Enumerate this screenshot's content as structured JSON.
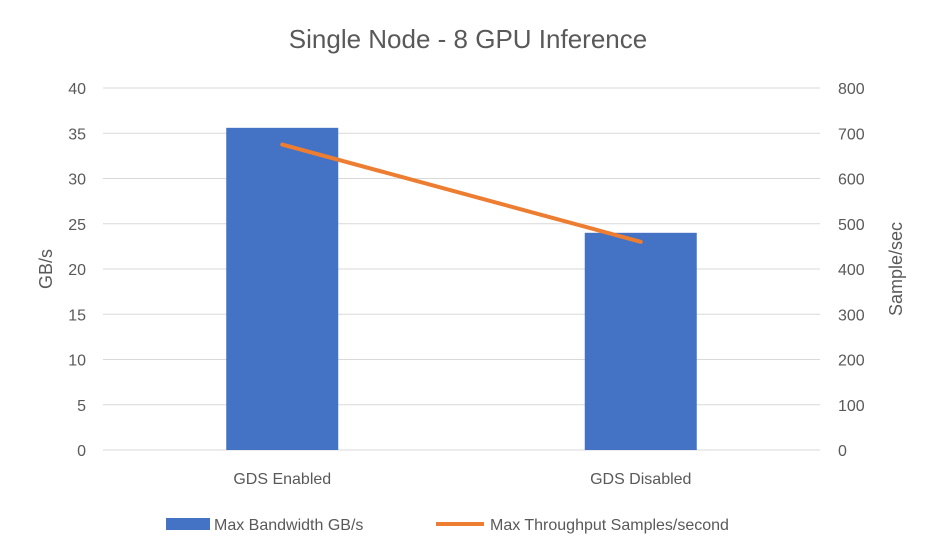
{
  "chart_data": {
    "type": "bar",
    "title": "Single Node - 8 GPU Inference",
    "categories": [
      "GDS Enabled",
      "GDS Disabled"
    ],
    "series": [
      {
        "name": "Max Bandwidth GB/s",
        "type": "bar",
        "axis": "left",
        "color": "#4472c4",
        "values": [
          35.6,
          24.0
        ]
      },
      {
        "name": "Max Throughput Samples/second",
        "type": "line",
        "axis": "right",
        "color": "#ed7d31",
        "values": [
          675,
          460
        ]
      }
    ],
    "ylabel": "GB/s",
    "y2label": "Sample/sec",
    "ylim": [
      0,
      40
    ],
    "y2lim": [
      0,
      800
    ],
    "yticks": [
      "0",
      "5",
      "10",
      "15",
      "20",
      "25",
      "30",
      "35",
      "40"
    ],
    "y2ticks": [
      "0",
      "100",
      "200",
      "300",
      "400",
      "500",
      "600",
      "700",
      "800"
    ],
    "grid": true,
    "legend_position": "bottom"
  }
}
